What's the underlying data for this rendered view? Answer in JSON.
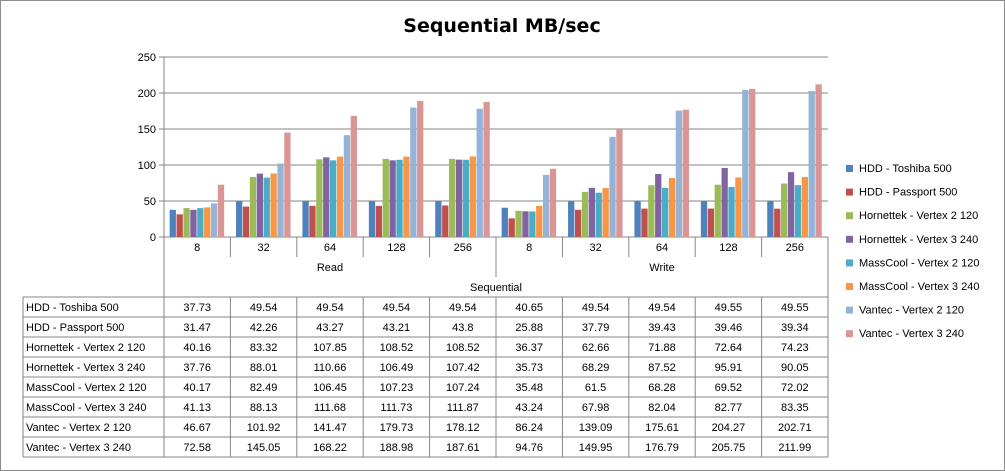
{
  "chart_data": {
    "type": "bar",
    "title": "Sequential MB/sec",
    "xlabel": "Sequential",
    "ylabel": "",
    "ylim": [
      0,
      250
    ],
    "yticks": [
      0,
      50,
      100,
      150,
      200,
      250
    ],
    "grid": true,
    "legend_position": "right",
    "groups": [
      {
        "name": "Read",
        "categories": [
          "8",
          "32",
          "64",
          "128",
          "256"
        ]
      },
      {
        "name": "Write",
        "categories": [
          "8",
          "32",
          "64",
          "128",
          "256"
        ]
      }
    ],
    "categories": [
      "8",
      "32",
      "64",
      "128",
      "256",
      "8",
      "32",
      "64",
      "128",
      "256"
    ],
    "series": [
      {
        "name": "HDD - Toshiba 500",
        "color": "#4F81BD",
        "values": [
          37.73,
          49.54,
          49.54,
          49.54,
          49.54,
          40.65,
          49.54,
          49.54,
          49.55,
          49.55
        ]
      },
      {
        "name": "HDD - Passport 500",
        "color": "#C0504D",
        "values": [
          31.47,
          42.26,
          43.27,
          43.21,
          43.8,
          25.88,
          37.79,
          39.43,
          39.46,
          39.34
        ]
      },
      {
        "name": "Hornettek - Vertex 2 120",
        "color": "#9BBB59",
        "values": [
          40.16,
          83.32,
          107.85,
          108.52,
          108.52,
          36.37,
          62.66,
          71.88,
          72.64,
          74.23
        ]
      },
      {
        "name": "Hornettek - Vertex 3 240",
        "color": "#8064A2",
        "values": [
          37.76,
          88.01,
          110.66,
          106.49,
          107.42,
          35.73,
          68.29,
          87.52,
          95.91,
          90.05
        ]
      },
      {
        "name": "MassCool - Vertex 2 120",
        "color": "#4BACC6",
        "values": [
          40.17,
          82.49,
          106.45,
          107.23,
          107.24,
          35.48,
          61.5,
          68.28,
          69.52,
          72.02
        ]
      },
      {
        "name": "MassCool - Vertex 3 240",
        "color": "#F79646",
        "values": [
          41.13,
          88.13,
          111.68,
          111.73,
          111.87,
          43.24,
          67.98,
          82.04,
          82.77,
          83.35
        ]
      },
      {
        "name": "Vantec - Vertex 2 120",
        "color": "#95B3D7",
        "values": [
          46.67,
          101.92,
          141.47,
          179.73,
          178.12,
          86.24,
          139.09,
          175.61,
          204.27,
          202.71
        ]
      },
      {
        "name": "Vantec - Vertex 3 240",
        "color": "#D99694",
        "values": [
          72.58,
          145.05,
          168.22,
          188.98,
          187.61,
          94.76,
          149.95,
          176.79,
          205.75,
          211.99
        ]
      }
    ],
    "table_labels": [
      [
        "37.73",
        "49.54",
        "49.54",
        "49.54",
        "49.54",
        "40.65",
        "49.54",
        "49.54",
        "49.55",
        "49.55"
      ],
      [
        "31.47",
        "42.26",
        "43.27",
        "43.21",
        "43.8",
        "25.88",
        "37.79",
        "39.43",
        "39.46",
        "39.34"
      ],
      [
        "40.16",
        "83.32",
        "107.85",
        "108.52",
        "108.52",
        "36.37",
        "62.66",
        "71.88",
        "72.64",
        "74.23"
      ],
      [
        "37.76",
        "88.01",
        "110.66",
        "106.49",
        "107.42",
        "35.73",
        "68.29",
        "87.52",
        "95.91",
        "90.05"
      ],
      [
        "40.17",
        "82.49",
        "106.45",
        "107.23",
        "107.24",
        "35.48",
        "61.5",
        "68.28",
        "69.52",
        "72.02"
      ],
      [
        "41.13",
        "88.13",
        "111.68",
        "111.73",
        "111.87",
        "43.24",
        "67.98",
        "82.04",
        "82.77",
        "83.35"
      ],
      [
        "46.67",
        "101.92",
        "141.47",
        "179.73",
        "178.12",
        "86.24",
        "139.09",
        "175.61",
        "204.27",
        "202.71"
      ],
      [
        "72.58",
        "145.05",
        "168.22",
        "188.98",
        "187.61",
        "94.76",
        "149.95",
        "176.79",
        "205.75",
        "211.99"
      ]
    ]
  }
}
